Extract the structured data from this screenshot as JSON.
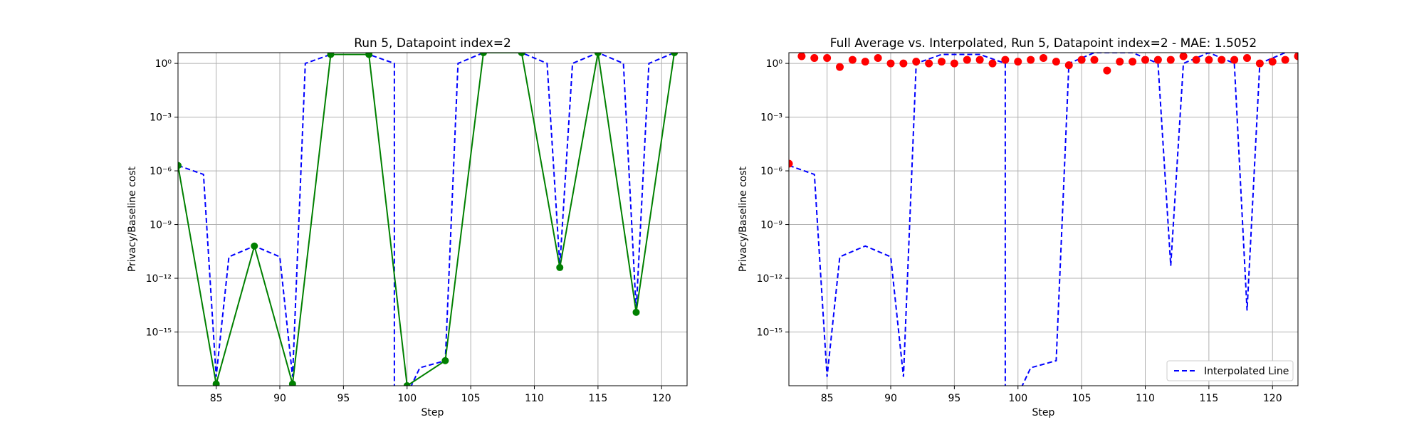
{
  "chart_data": [
    {
      "type": "line",
      "title": "Run 5, Datapoint index=2",
      "xlabel": "Step",
      "ylabel": "Privacy/Baseline cost",
      "xlim": [
        82,
        122
      ],
      "ylim": [
        -18,
        0.6
      ],
      "yscale": "log",
      "grid": true,
      "xticks": [
        "85",
        "90",
        "95",
        "100",
        "105",
        "110",
        "115",
        "120"
      ],
      "xtick_values": [
        85,
        90,
        95,
        100,
        105,
        110,
        115,
        120
      ],
      "yticks": [
        "10^0",
        "10^-3",
        "10^-6",
        "10^-9",
        "10^-12",
        "10^-15"
      ],
      "ytick_exponents": [
        0,
        -3,
        -6,
        -9,
        -12,
        -15
      ],
      "series": [
        {
          "style": "dashed",
          "color": "#0000ff",
          "x": [
            82,
            84,
            85,
            86,
            88,
            90,
            91,
            92,
            94,
            97,
            99,
            99,
            100,
            101,
            103,
            104,
            106,
            109,
            111,
            112,
            113,
            115,
            117,
            118,
            119,
            121
          ],
          "log10_y": [
            -5.7,
            -6.2,
            -17.5,
            -10.8,
            -10.2,
            -10.8,
            -17.5,
            0.0,
            0.5,
            0.5,
            0.0,
            -18.5,
            -18.5,
            -17.0,
            -16.6,
            0.0,
            0.6,
            0.6,
            0.0,
            -11.3,
            0.0,
            0.6,
            0.0,
            -13.8,
            0.0,
            0.6
          ]
        },
        {
          "style": "solid",
          "marker": "o",
          "color": "#008000",
          "x": [
            82,
            85,
            88,
            91,
            94,
            97,
            100,
            103,
            106,
            109,
            112,
            115,
            118,
            121
          ],
          "log10_y": [
            -5.7,
            -17.9,
            -10.2,
            -17.9,
            0.5,
            0.5,
            -18.0,
            -16.6,
            0.6,
            0.6,
            -11.4,
            0.6,
            -13.9,
            0.6
          ]
        }
      ]
    },
    {
      "type": "scatter",
      "title": "Full Average vs. Interpolated, Run 5, Datapoint index=2 - MAE: 1.5052",
      "xlabel": "Step",
      "ylabel": "Privacy/Baseline cost",
      "xlim": [
        82,
        122
      ],
      "ylim": [
        -18,
        0.6
      ],
      "yscale": "log",
      "grid": true,
      "legend_position": "lower-right",
      "legend": [
        "Interpolated Line"
      ],
      "xticks": [
        "85",
        "90",
        "95",
        "100",
        "105",
        "110",
        "115",
        "120"
      ],
      "xtick_values": [
        85,
        90,
        95,
        100,
        105,
        110,
        115,
        120
      ],
      "yticks": [
        "10^0",
        "10^-3",
        "10^-6",
        "10^-9",
        "10^-12",
        "10^-15"
      ],
      "ytick_exponents": [
        0,
        -3,
        -6,
        -9,
        -12,
        -15
      ],
      "series": [
        {
          "name": "Interpolated Line",
          "style": "dashed",
          "color": "#0000ff",
          "x": [
            82,
            84,
            85,
            86,
            88,
            90,
            91,
            92,
            94,
            97,
            99,
            99,
            100,
            101,
            103,
            104,
            106,
            109,
            111,
            112,
            113,
            115,
            117,
            118,
            119,
            121
          ],
          "log10_y": [
            -5.7,
            -6.2,
            -17.5,
            -10.8,
            -10.2,
            -10.8,
            -17.5,
            0.0,
            0.5,
            0.5,
            0.0,
            -18.5,
            -18.5,
            -17.0,
            -16.6,
            0.0,
            0.6,
            0.6,
            0.0,
            -11.3,
            0.0,
            0.6,
            0.0,
            -13.8,
            0.0,
            0.6
          ]
        },
        {
          "style": "points",
          "marker": "o",
          "color": "#ff0000",
          "x": [
            82,
            83,
            84,
            85,
            86,
            87,
            88,
            89,
            90,
            91,
            92,
            93,
            94,
            95,
            96,
            97,
            98,
            99,
            100,
            101,
            102,
            103,
            104,
            105,
            106,
            107,
            108,
            109,
            110,
            111,
            112,
            113,
            114,
            115,
            116,
            117,
            118,
            119,
            120,
            121,
            122
          ],
          "log10_y": [
            -5.6,
            0.4,
            0.3,
            0.3,
            -0.2,
            0.2,
            0.1,
            0.3,
            0.0,
            0.0,
            0.1,
            0.0,
            0.1,
            0.0,
            0.2,
            0.2,
            0.0,
            0.2,
            0.1,
            0.2,
            0.3,
            0.1,
            -0.1,
            0.2,
            0.2,
            -0.4,
            0.1,
            0.1,
            0.2,
            0.2,
            0.2,
            0.4,
            0.2,
            0.2,
            0.2,
            0.2,
            0.3,
            0.0,
            0.1,
            0.2,
            0.4
          ]
        }
      ]
    }
  ]
}
